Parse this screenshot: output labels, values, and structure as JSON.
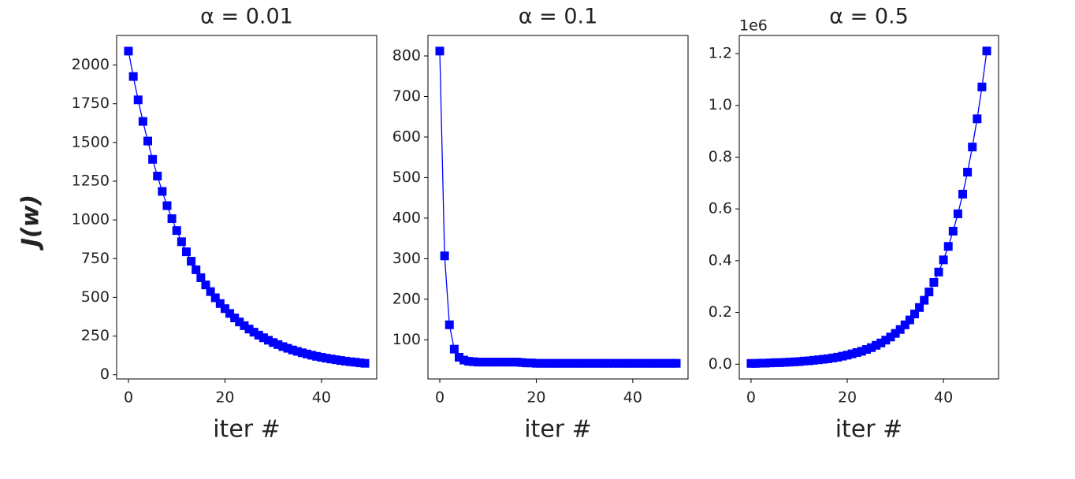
{
  "chart_data": [
    {
      "type": "line",
      "title": "α = 0.01",
      "x_label": "iter #",
      "y_label": "J(w)",
      "x": [
        0,
        1,
        2,
        3,
        4,
        5,
        6,
        7,
        8,
        9,
        10,
        11,
        12,
        13,
        14,
        15,
        16,
        17,
        18,
        19,
        20,
        21,
        22,
        23,
        24,
        25,
        26,
        27,
        28,
        29,
        30,
        31,
        32,
        33,
        34,
        35,
        36,
        37,
        38,
        39,
        40,
        41,
        42,
        43,
        44,
        45,
        46,
        47,
        48,
        49
      ],
      "series": [
        {
          "color": "#0000ff",
          "marker": "s",
          "values": [
            2090,
            1926,
            1775,
            1636,
            1509,
            1391,
            1283,
            1184,
            1092,
            1008,
            931,
            859,
            794,
            733,
            678,
            627,
            580,
            537,
            497,
            460,
            427,
            396,
            367,
            341,
            317,
            295,
            275,
            256,
            239,
            223,
            208,
            195,
            182,
            171,
            160,
            151,
            142,
            134,
            126,
            119,
            113,
            107,
            102,
            97,
            92,
            88,
            84,
            81,
            77,
            74
          ]
        }
      ],
      "xlim": [
        -2.45,
        51.45
      ],
      "ylim": [
        -27,
        2191
      ],
      "xticks": [
        0,
        20,
        40
      ],
      "yticks": [
        0,
        250,
        500,
        750,
        1000,
        1250,
        1500,
        1750,
        2000
      ]
    },
    {
      "type": "line",
      "title": "α = 0.1",
      "x_label": "iter #",
      "x": [
        0,
        1,
        2,
        3,
        4,
        5,
        6,
        7,
        8,
        9,
        10,
        11,
        12,
        13,
        14,
        15,
        16,
        17,
        18,
        19,
        20,
        21,
        22,
        23,
        24,
        25,
        26,
        27,
        28,
        29,
        30,
        31,
        32,
        33,
        34,
        35,
        36,
        37,
        38,
        39,
        40,
        41,
        42,
        43,
        44,
        45,
        46,
        47,
        48,
        49
      ],
      "series": [
        {
          "color": "#0000ff",
          "marker": "s",
          "values": [
            812,
            307,
            137,
            77,
            57,
            50,
            47,
            46,
            45,
            45,
            45,
            45,
            45,
            45,
            45,
            45,
            45,
            44,
            43,
            43,
            42,
            42,
            42,
            42,
            42,
            42,
            42,
            42,
            42,
            42,
            42,
            42,
            42,
            42,
            42,
            42,
            42,
            42,
            42,
            42,
            42,
            42,
            42,
            42,
            42,
            42,
            42,
            42,
            42,
            42
          ]
        }
      ],
      "xlim": [
        -2.45,
        51.45
      ],
      "ylim": [
        3.5,
        850.5
      ],
      "xticks": [
        0,
        20,
        40
      ],
      "yticks": [
        100,
        200,
        300,
        400,
        500,
        600,
        700,
        800
      ]
    },
    {
      "type": "line",
      "title": "α = 0.5",
      "x_label": "iter #",
      "offset_text": "1e6",
      "x": [
        0,
        1,
        2,
        3,
        4,
        5,
        6,
        7,
        8,
        9,
        10,
        11,
        12,
        13,
        14,
        15,
        16,
        17,
        18,
        19,
        20,
        21,
        22,
        23,
        24,
        25,
        26,
        27,
        28,
        29,
        30,
        31,
        32,
        33,
        34,
        35,
        36,
        37,
        38,
        39,
        40,
        41,
        42,
        43,
        44,
        45,
        46,
        47,
        48,
        49
      ],
      "series": [
        {
          "color": "#0000ff",
          "marker": "s",
          "values": [
            0.003,
            0.003,
            0.004,
            0.004,
            0.005,
            0.006,
            0.006,
            0.007,
            0.008,
            0.009,
            0.01,
            0.012,
            0.013,
            0.015,
            0.017,
            0.019,
            0.021,
            0.024,
            0.027,
            0.031,
            0.035,
            0.04,
            0.045,
            0.05,
            0.057,
            0.064,
            0.073,
            0.082,
            0.093,
            0.105,
            0.119,
            0.134,
            0.152,
            0.171,
            0.194,
            0.219,
            0.247,
            0.279,
            0.316,
            0.356,
            0.403,
            0.455,
            0.514,
            0.581,
            0.657,
            0.742,
            0.839,
            0.948,
            1.071,
            1.21
          ]
        }
      ],
      "xlim": [
        -2.45,
        51.45
      ],
      "ylim": [
        -0.057,
        1.27
      ],
      "xticks": [
        0,
        20,
        40
      ],
      "yticks": [
        {
          "value": 0,
          "label": "0.0"
        },
        0.2,
        0.4,
        0.6,
        0.8,
        {
          "value": 1,
          "label": "1.0"
        },
        1.2
      ]
    }
  ]
}
